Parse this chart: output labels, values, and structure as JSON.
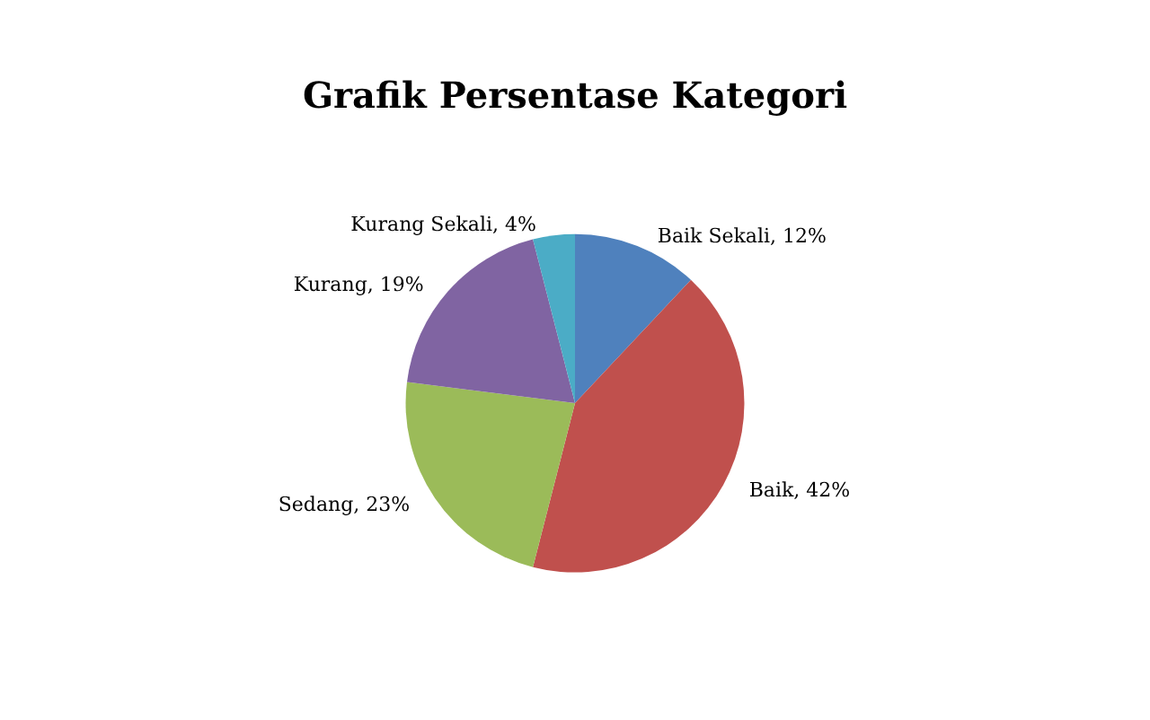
{
  "chart_data": {
    "type": "pie",
    "title": "Grafik Persentase Kategori",
    "categories": [
      "Baik Sekali",
      "Baik",
      "Sedang",
      "Kurang",
      "Kurang Sekali"
    ],
    "values": [
      12,
      42,
      23,
      19,
      4
    ],
    "colors": [
      "#4f81bd",
      "#c0504d",
      "#9bbb59",
      "#8064a2",
      "#4bacc6"
    ],
    "value_labels": [
      "12%",
      "42%",
      "23%",
      "19%",
      "4%"
    ],
    "legend": false
  }
}
